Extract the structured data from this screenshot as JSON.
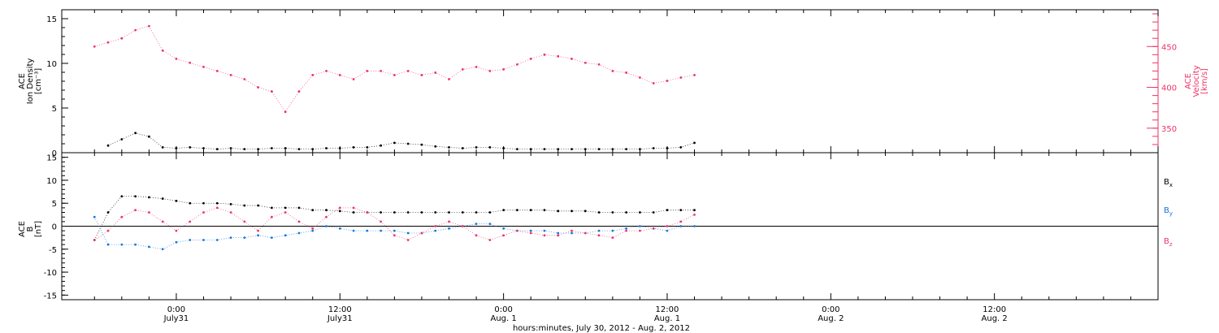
{
  "colors": {
    "axis": "#000000",
    "density": "#000000",
    "velocity": "#ee3366",
    "bx": "#000000",
    "by": "#1177dd",
    "bz": "#ee3366"
  },
  "chart_data": [
    {
      "type": "scatter",
      "panel": "top",
      "ylabel_left": [
        "ACE",
        "Ion Density",
        "[cm⁻³]"
      ],
      "ylabel_right": [
        "ACE",
        "Velocity",
        "[km/s]"
      ],
      "left_axis": {
        "ylim": [
          0,
          16
        ],
        "ticks": [
          "0",
          "5",
          "10",
          "15"
        ]
      },
      "right_axis": {
        "ylim": [
          320,
          495
        ],
        "ticks": [
          "350",
          "400",
          "450"
        ]
      },
      "x_hours_range": [
        -6,
        39
      ],
      "series": [
        {
          "key": "density",
          "axis": "left",
          "x_hours": [
            -5,
            -4,
            -3,
            -2,
            -1,
            0,
            1,
            2,
            3,
            4,
            5,
            6,
            7,
            8,
            9,
            10,
            11,
            12,
            13,
            14,
            15,
            16,
            17,
            18,
            19,
            20,
            21,
            22,
            23,
            24,
            25,
            26,
            27,
            28,
            29,
            30,
            31,
            32,
            33,
            34,
            35,
            36,
            37,
            38
          ],
          "values": [
            0.8,
            1.5,
            2.2,
            1.8,
            0.6,
            0.5,
            0.6,
            0.5,
            0.4,
            0.5,
            0.4,
            0.4,
            0.5,
            0.5,
            0.4,
            0.4,
            0.5,
            0.5,
            0.6,
            0.6,
            0.8,
            1.1,
            1.0,
            0.9,
            0.7,
            0.6,
            0.5,
            0.6,
            0.6,
            0.5,
            0.4,
            0.4,
            0.4,
            0.4,
            0.4,
            0.4,
            0.4,
            0.4,
            0.4,
            0.4,
            0.5,
            0.5,
            0.6,
            1.1
          ]
        },
        {
          "key": "velocity",
          "axis": "right",
          "x_hours": [
            -6,
            -5,
            -4,
            -3,
            -2,
            -1,
            0,
            1,
            2,
            3,
            4,
            5,
            6,
            7,
            8,
            9,
            10,
            11,
            12,
            13,
            14,
            15,
            16,
            17,
            18,
            19,
            20,
            21,
            22,
            23,
            24,
            25,
            26,
            27,
            28,
            29,
            30,
            31,
            32,
            33,
            34,
            35,
            36,
            37,
            38
          ],
          "values": [
            450,
            455,
            460,
            470,
            475,
            445,
            435,
            430,
            425,
            420,
            415,
            410,
            400,
            395,
            370,
            395,
            415,
            420,
            415,
            410,
            420,
            420,
            415,
            420,
            415,
            418,
            410,
            422,
            425,
            420,
            422,
            428,
            435,
            440,
            438,
            435,
            430,
            428,
            420,
            418,
            412,
            405,
            408,
            412,
            415
          ]
        }
      ]
    },
    {
      "type": "scatter",
      "panel": "bottom",
      "ylabel_left": [
        "ACE",
        "B",
        "[nT]"
      ],
      "ylim": [
        -16,
        16
      ],
      "ticks": [
        "-15",
        "-10",
        "-5",
        "0",
        "5",
        "10",
        "15"
      ],
      "x_hours_range": [
        -6,
        39
      ],
      "series": [
        {
          "key": "bx",
          "label": "B",
          "subscript": "x",
          "x_hours": [
            -6,
            -5,
            -4,
            -3,
            -2,
            -1,
            0,
            1,
            2,
            3,
            4,
            5,
            6,
            7,
            8,
            9,
            10,
            11,
            12,
            13,
            14,
            15,
            16,
            17,
            18,
            19,
            20,
            21,
            22,
            23,
            24,
            25,
            26,
            27,
            28,
            29,
            30,
            31,
            32,
            33,
            34,
            35,
            36,
            37,
            38
          ],
          "values": [
            -3,
            3,
            6.5,
            6.5,
            6.3,
            6,
            5.5,
            5,
            5,
            5,
            4.8,
            4.5,
            4.5,
            4,
            4,
            4,
            3.5,
            3.5,
            3.3,
            3,
            3,
            3,
            3,
            3,
            3,
            3,
            3,
            3,
            3,
            3,
            3.5,
            3.5,
            3.5,
            3.5,
            3.3,
            3.3,
            3.3,
            3,
            3,
            3,
            3,
            3,
            3.5,
            3.5,
            3.5
          ]
        },
        {
          "key": "by",
          "label": "B",
          "subscript": "y",
          "x_hours": [
            -6,
            -5,
            -4,
            -3,
            -2,
            -1,
            0,
            1,
            2,
            3,
            4,
            5,
            6,
            7,
            8,
            9,
            10,
            11,
            12,
            13,
            14,
            15,
            16,
            17,
            18,
            19,
            20,
            21,
            22,
            23,
            24,
            25,
            26,
            27,
            28,
            29,
            30,
            31,
            32,
            33,
            34,
            35,
            36,
            37,
            38
          ],
          "values": [
            2,
            -4,
            -4,
            -4,
            -4.5,
            -5,
            -3.5,
            -3,
            -3,
            -3,
            -2.5,
            -2.5,
            -2,
            -2.5,
            -2,
            -1.5,
            -1,
            0,
            -0.5,
            -1,
            -1,
            -1,
            -1,
            -1.5,
            -1.5,
            -1,
            -0.5,
            0,
            0.5,
            0.5,
            -0.5,
            -1,
            -1,
            -1,
            -1.5,
            -1.5,
            -1.5,
            -1,
            -1,
            -0.5,
            0,
            -0.5,
            -1,
            0,
            0
          ]
        },
        {
          "key": "bz",
          "label": "B",
          "subscript": "z",
          "x_hours": [
            -6,
            -5,
            -4,
            -3,
            -2,
            -1,
            0,
            1,
            2,
            3,
            4,
            5,
            6,
            7,
            8,
            9,
            10,
            11,
            12,
            13,
            14,
            15,
            16,
            17,
            18,
            19,
            20,
            21,
            22,
            23,
            24,
            25,
            26,
            27,
            28,
            29,
            30,
            31,
            32,
            33,
            34,
            35,
            36,
            37,
            38
          ],
          "values": [
            -3,
            -1,
            2,
            3.5,
            3,
            1,
            -1,
            1,
            3,
            4,
            3,
            1,
            -1,
            2,
            3,
            1,
            -0.5,
            2,
            4,
            4,
            3,
            1,
            -2,
            -3,
            -1.5,
            0,
            1,
            0,
            -2,
            -3,
            -2,
            -1,
            -1.5,
            -2,
            -2,
            -1,
            -1.5,
            -2,
            -2.5,
            -1,
            -1,
            -0.5,
            0,
            1,
            2.5
          ]
        }
      ]
    }
  ],
  "x_axis": {
    "tick_labels": [
      {
        "hours": 0,
        "time": "0:00",
        "day": "July31"
      },
      {
        "hours": 12,
        "time": "12:00",
        "day": "July31"
      },
      {
        "hours": 24,
        "time": "0:00",
        "day": "Aug. 1"
      },
      {
        "hours": 36,
        "time": "12:00",
        "day": "Aug. 1"
      },
      {
        "hours": 48,
        "time": "0:00",
        "day": "Aug. 2"
      },
      {
        "hours": 60,
        "time": "12:00",
        "day": "Aug. 2"
      }
    ],
    "range_hours": [
      -8.4,
      72
    ],
    "xlabel": "hours:minutes, July 30, 2012 - Aug. 2, 2012"
  }
}
